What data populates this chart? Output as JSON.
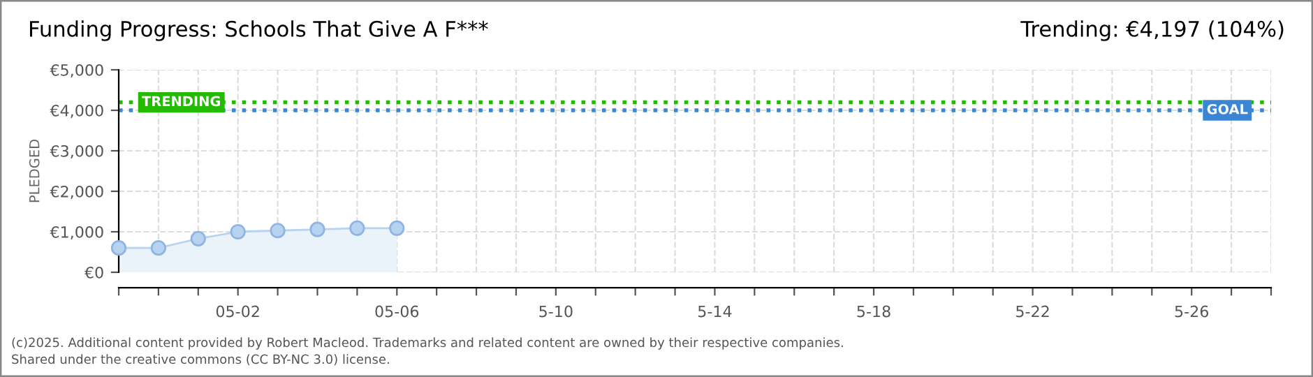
{
  "chart_data": {
    "type": "area",
    "title": "Funding Progress: Schools That Give A F***",
    "ylabel": "PLEDGED",
    "annotations": [
      "Trending: €4,197 (104%)",
      "(c)2025. Additional content provided by Robert Macleod. Trademarks and related content are owned by their respective companies.",
      "Shared under the creative commons (CC BY-NC 3.0) license."
    ],
    "x": [
      "2025-04-29",
      "2025-04-30",
      "2025-05-01",
      "2025-05-02",
      "2025-05-03",
      "2025-05-04",
      "2025-05-05",
      "2025-05-06"
    ],
    "series": [
      {
        "color": "#b8d3f0",
        "values": [
          600,
          600,
          830,
          1000,
          1030,
          1060,
          1090,
          1090
        ]
      }
    ],
    "marker": "circle",
    "grid": true,
    "xlim": [
      "2025-04-29",
      "2025-05-28"
    ],
    "xticks": [
      {
        "value": "2025-04-29",
        "label": null
      },
      {
        "value": "2025-04-30",
        "label": null
      },
      {
        "value": "2025-05-01",
        "label": null
      },
      {
        "value": "2025-05-02",
        "label": "05-02"
      },
      {
        "value": "2025-05-03",
        "label": null
      },
      {
        "value": "2025-05-04",
        "label": null
      },
      {
        "value": "2025-05-05",
        "label": null
      },
      {
        "value": "2025-05-06",
        "label": "05-06"
      },
      {
        "value": "2025-05-07",
        "label": null
      },
      {
        "value": "2025-05-08",
        "label": null
      },
      {
        "value": "2025-05-09",
        "label": null
      },
      {
        "value": "2025-05-10",
        "label": "5-10"
      },
      {
        "value": "2025-05-11",
        "label": null
      },
      {
        "value": "2025-05-12",
        "label": null
      },
      {
        "value": "2025-05-13",
        "label": null
      },
      {
        "value": "2025-05-14",
        "label": "5-14"
      },
      {
        "value": "2025-05-15",
        "label": null
      },
      {
        "value": "2025-05-16",
        "label": null
      },
      {
        "value": "2025-05-17",
        "label": null
      },
      {
        "value": "2025-05-18",
        "label": "5-18"
      },
      {
        "value": "2025-05-19",
        "label": null
      },
      {
        "value": "2025-05-20",
        "label": null
      },
      {
        "value": "2025-05-21",
        "label": null
      },
      {
        "value": "2025-05-22",
        "label": "5-22"
      },
      {
        "value": "2025-05-23",
        "label": null
      },
      {
        "value": "2025-05-24",
        "label": null
      },
      {
        "value": "2025-05-25",
        "label": null
      },
      {
        "value": "2025-05-26",
        "label": "5-26"
      },
      {
        "value": "2025-05-27",
        "label": null
      },
      {
        "value": "2025-05-28",
        "label": null
      }
    ],
    "ylim": [
      0,
      5000
    ],
    "yticks": [
      {
        "value": 0,
        "label": "€0"
      },
      {
        "value": 1000,
        "label": "€1,000"
      },
      {
        "value": 2000,
        "label": "€2,000"
      },
      {
        "value": 3000,
        "label": "€3,000"
      },
      {
        "value": 4000,
        "label": "€4,000"
      },
      {
        "value": 5000,
        "label": "€5,000"
      }
    ],
    "ref_lines": [
      {
        "axis": "y",
        "value": 4197,
        "label": "TRENDING",
        "color": "#22bb00",
        "line_style": "dotted"
      },
      {
        "axis": "y",
        "value": 4000,
        "label": "GOAL",
        "color": "#3a86d4",
        "line_style": "dotted"
      }
    ]
  }
}
